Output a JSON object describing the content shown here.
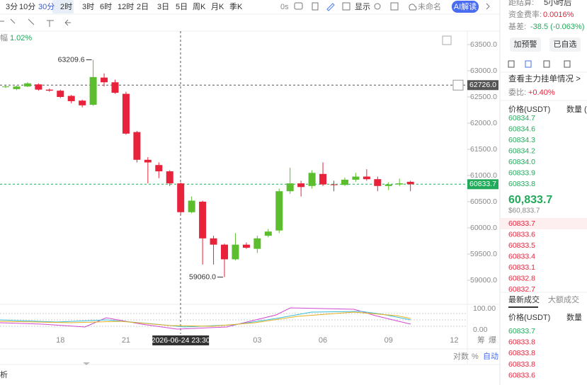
{
  "toolbar": {
    "intervals": [
      "3分",
      "10分",
      "30分",
      "2时",
      "3时",
      "6时",
      "12时",
      "2日",
      "3日",
      "5日",
      "周K",
      "月K",
      "季K"
    ],
    "countdown": "0s",
    "display": "显示",
    "layout_name": "未命名",
    "ai": "AI解读"
  },
  "chart": {
    "amplitude_label": "幅",
    "amplitude": "1.02%",
    "ylim": [
      58700,
      63800
    ],
    "yticks": [
      {
        "value": 63500,
        "label": "63500.0"
      },
      {
        "value": 63000,
        "label": "63000.0"
      },
      {
        "value": 62500,
        "label": "62500.0"
      },
      {
        "value": 62000,
        "label": "62000.0"
      },
      {
        "value": 61500,
        "label": "61500.0"
      },
      {
        "value": 61000,
        "label": "61000.0"
      },
      {
        "value": 60500,
        "label": "60500.0"
      },
      {
        "value": 60000,
        "label": "60000.0"
      },
      {
        "value": 59500,
        "label": "59500.0"
      },
      {
        "value": 59000,
        "label": "59000.0"
      }
    ],
    "price_lines": [
      {
        "value": 62726,
        "label": "62726.0",
        "color": "#555555"
      },
      {
        "value": 60833.7,
        "label": "60833.7",
        "color": "#22a95a"
      }
    ],
    "categories": [
      null,
      null,
      null,
      null,
      null,
      "18",
      null,
      null,
      null,
      null,
      null,
      "21",
      null,
      null,
      null,
      null,
      "2026-06-24 23:30",
      null,
      null,
      null,
      null,
      null,
      null,
      "03",
      null,
      null,
      null,
      null,
      null,
      "06",
      null,
      null,
      null,
      null,
      null,
      "09",
      null,
      null,
      null,
      null,
      null,
      "12"
    ],
    "open": [
      62690,
      62650,
      62700,
      62740,
      62640,
      62620,
      62520,
      62430,
      62350,
      62870,
      62780,
      62560,
      61830,
      61300,
      61200,
      61080,
      60850,
      60300,
      60500,
      59800,
      59680,
      59400,
      59680,
      59600,
      59850,
      59950,
      60700,
      60850,
      60800,
      61030,
      60830,
      60820,
      60920,
      60980,
      60930,
      60800,
      60830,
      60880,
      null,
      null,
      null,
      null
    ],
    "close": [
      62700,
      62700,
      62760,
      62640,
      62620,
      62500,
      62420,
      62340,
      62880,
      62780,
      62580,
      61800,
      61300,
      61250,
      61080,
      60850,
      60300,
      60520,
      59800,
      59680,
      59400,
      59680,
      59620,
      59800,
      59930,
      60700,
      60850,
      60780,
      61050,
      60830,
      60820,
      60920,
      60980,
      60930,
      60800,
      60830,
      60850,
      60833.7,
      null,
      null,
      null,
      null
    ],
    "high": [
      62720,
      62720,
      62780,
      62760,
      62660,
      62640,
      62540,
      62450,
      63209.6,
      62950,
      62830,
      62600,
      61850,
      61350,
      61250,
      61100,
      60870,
      60600,
      60520,
      59850,
      59700,
      59900,
      59720,
      59850,
      59980,
      60750,
      61150,
      60900,
      61100,
      61250,
      60900,
      60960,
      61050,
      61120,
      60980,
      60870,
      60940,
      60900,
      null,
      null,
      null,
      null
    ],
    "low": [
      62670,
      62630,
      62690,
      62620,
      62600,
      62480,
      62380,
      62300,
      62330,
      62700,
      62560,
      61780,
      61250,
      60850,
      60950,
      60800,
      60250,
      60280,
      59300,
      59300,
      59060,
      59380,
      59600,
      59520,
      59820,
      59900,
      60650,
      60600,
      60750,
      60800,
      60700,
      60800,
      60880,
      60900,
      60700,
      60720,
      60800,
      60700,
      null,
      null,
      null,
      null
    ],
    "up_color": "#5cbd2e",
    "down_color": "#e8223a",
    "high_label": "63209.6",
    "low_label": "59060.0",
    "indicator_ticks": [
      {
        "value": 100,
        "label": "100.00"
      },
      {
        "value": 0,
        "label": "0.00"
      }
    ],
    "axis_buttons": [
      "对数",
      "%",
      "自动"
    ],
    "side_tabs": [
      "筹",
      "爆"
    ],
    "bottom_tab": "析"
  },
  "panel": {
    "settle_label": "距结算:",
    "settle": "5小时后",
    "funding_label": "资金费率:",
    "funding": "0.0016%",
    "basis_label": "基差:",
    "basis": "-38.5 (-0.063%)",
    "buttons": [
      "加预警",
      "已自选"
    ],
    "depth_link": "查看主力挂单情况 >",
    "ratio_label": "委比:",
    "ratio": "+0.40%",
    "book_header": [
      "价格(USDT)",
      "数量 ("
    ],
    "bids": [
      "60834.7",
      "60834.6",
      "60834.3",
      "60834.2",
      "60834.0",
      "60833.9",
      "60833.8"
    ],
    "last_price": "60,833.7",
    "last_usd": "$60,833.7",
    "asks": [
      "60833.7",
      "60833.6",
      "60833.5",
      "60833.4",
      "60833.1",
      "60832.8",
      "60832.7"
    ],
    "trade_tabs": [
      "最新成交",
      "大额成交"
    ],
    "trade_header": [
      "价格(USDT)",
      "数量"
    ],
    "trades": [
      {
        "price": "60833.7",
        "side": "buy"
      },
      {
        "price": "60833.8",
        "side": "sell"
      },
      {
        "price": "60833.8",
        "side": "sell"
      },
      {
        "price": "60833.8",
        "side": "sell"
      },
      {
        "price": "60833.6",
        "side": "sell"
      }
    ]
  }
}
